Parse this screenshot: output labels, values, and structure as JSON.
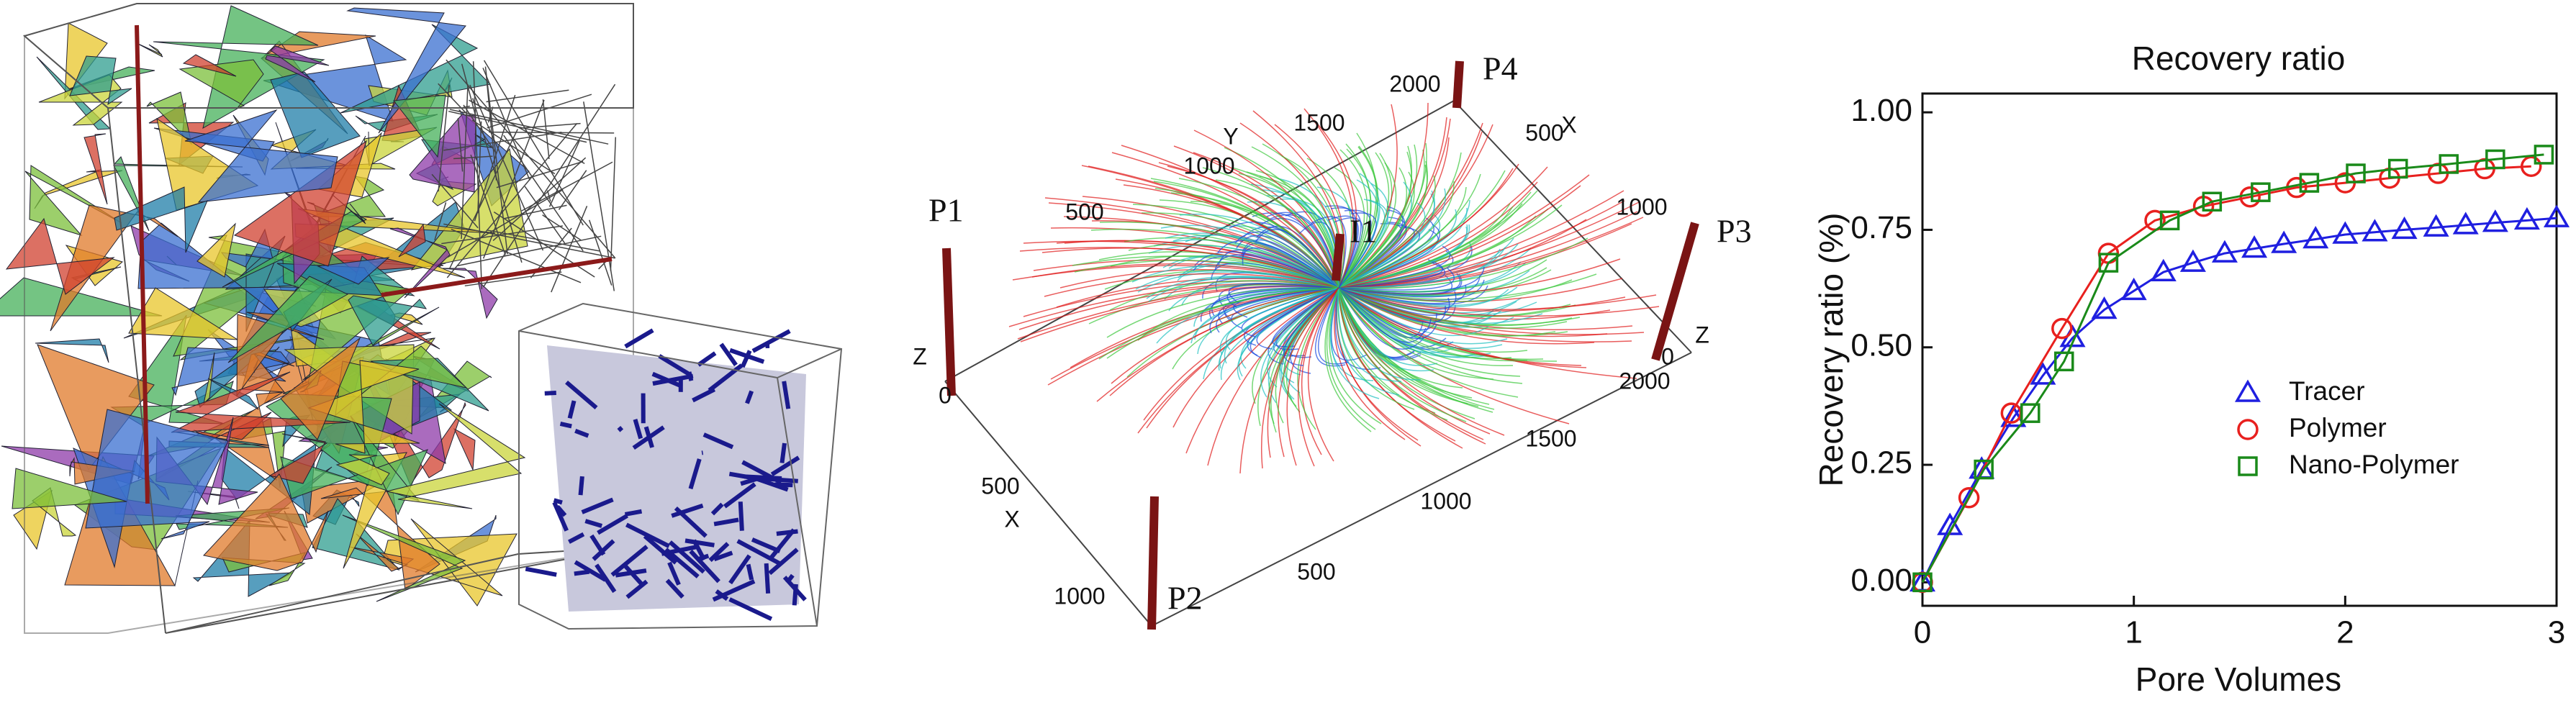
{
  "rendering_3d": {
    "well_labels": [
      "P1",
      "P2",
      "P3",
      "P4",
      "I1"
    ],
    "axis_labels": [
      "Y",
      "500",
      "1000",
      "1500",
      "2000",
      "X",
      "500",
      "1000",
      "Z",
      "0",
      "2000",
      "1500",
      "1000",
      "500",
      "Z",
      "0",
      "500",
      "X",
      "1000"
    ]
  },
  "chart_data": {
    "type": "scatter",
    "title": "Recovery ratio",
    "x_label": "Pore Volumes",
    "y_label": "Recovery ratio (%)",
    "xlim": [
      0,
      3
    ],
    "ylim": [
      -0.05,
      1.04
    ],
    "xticks": [
      0,
      1,
      2,
      3
    ],
    "yticks": [
      {
        "value": 0,
        "label": "0.00"
      },
      {
        "value": 0.25,
        "label": "0.25"
      },
      {
        "value": 0.5,
        "label": "0.50"
      },
      {
        "value": 0.75,
        "label": "0.75"
      },
      {
        "value": 1,
        "label": "1.00"
      }
    ],
    "legend": "center right",
    "series": [
      {
        "name": "Tracer",
        "color": "#1f1fe0",
        "marker": "triangle",
        "x": [
          0,
          0.13,
          0.28,
          0.43,
          0.57,
          0.71,
          0.86,
          1.0,
          1.14,
          1.28,
          1.43,
          1.57,
          1.71,
          1.86,
          2.0,
          2.14,
          2.28,
          2.43,
          2.57,
          2.71,
          2.86,
          3.0
        ],
        "values": [
          0,
          0.12,
          0.24,
          0.35,
          0.44,
          0.52,
          0.58,
          0.62,
          0.66,
          0.68,
          0.7,
          0.71,
          0.72,
          0.73,
          0.74,
          0.745,
          0.75,
          0.755,
          0.76,
          0.765,
          0.77,
          0.775
        ]
      },
      {
        "name": "Polymer",
        "color": "#e8201e",
        "marker": "circle",
        "x": [
          0,
          0.22,
          0.42,
          0.66,
          0.88,
          1.1,
          1.33,
          1.55,
          1.77,
          2.0,
          2.21,
          2.44,
          2.66,
          2.88
        ],
        "values": [
          0,
          0.18,
          0.36,
          0.54,
          0.7,
          0.77,
          0.8,
          0.82,
          0.84,
          0.85,
          0.86,
          0.87,
          0.88,
          0.885
        ]
      },
      {
        "name": "Nano-Polymer",
        "color": "#1a8a1a",
        "marker": "square",
        "x": [
          0,
          0.29,
          0.51,
          0.67,
          0.88,
          1.17,
          1.37,
          1.6,
          1.83,
          2.05,
          2.25,
          2.49,
          2.71,
          2.94
        ],
        "values": [
          0,
          0.24,
          0.36,
          0.47,
          0.68,
          0.77,
          0.81,
          0.83,
          0.85,
          0.87,
          0.88,
          0.89,
          0.9,
          0.91
        ]
      }
    ]
  }
}
